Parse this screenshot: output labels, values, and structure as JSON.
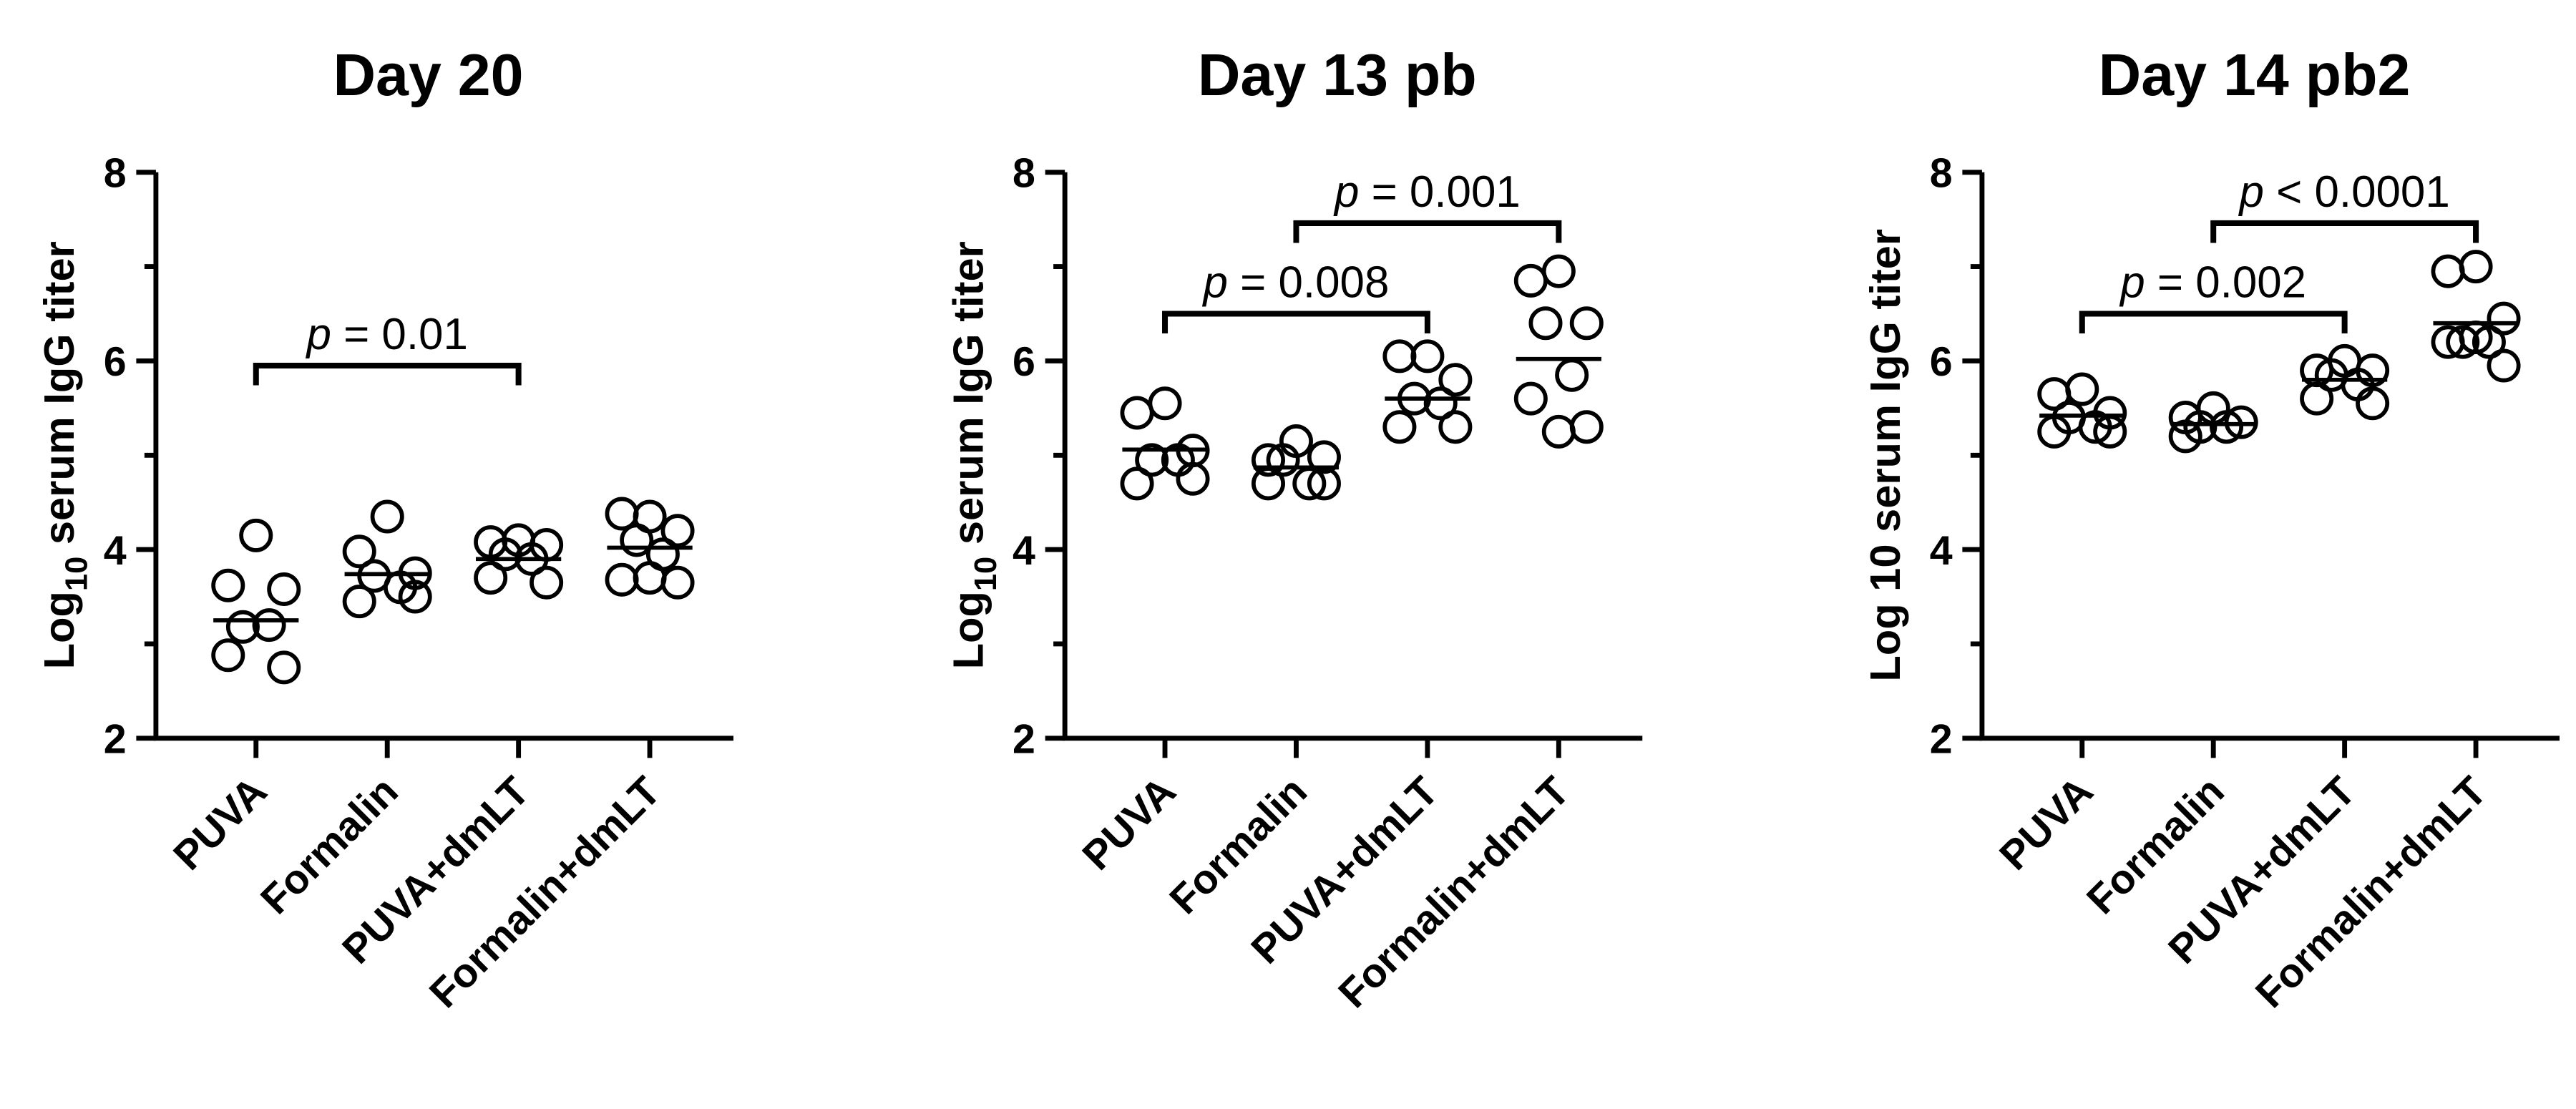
{
  "chart_data": [
    {
      "type": "dotplot",
      "title": "Day 20",
      "ylabel": [
        "Log",
        "10",
        " serum IgG titer"
      ],
      "categories": [
        "PUVA",
        "Formalin",
        "PUVA+dmLT",
        "Formalin+dmLT"
      ],
      "values": [
        [
          4.15,
          3.62,
          3.58,
          3.18,
          3.2,
          2.88,
          2.75
        ],
        [
          4.35,
          3.98,
          3.75,
          3.72,
          3.6,
          3.45,
          3.5
        ],
        [
          4.1,
          4.08,
          4.05,
          3.95,
          3.9,
          3.7,
          3.65
        ],
        [
          4.35,
          4.38,
          4.2,
          4.1,
          3.95,
          3.68,
          3.65,
          3.7
        ]
      ],
      "means": [
        3.25,
        3.74,
        3.9,
        4.02
      ],
      "ylim": [
        2,
        8
      ],
      "yticks": [
        2,
        4,
        6,
        8
      ],
      "minor_yticks": [
        3,
        5,
        7
      ],
      "color": "#000000",
      "annotations": [
        {
          "from": "PUVA",
          "to": "PUVA+dmLT",
          "y": 5.95,
          "symbol": "p",
          "text": " = 0.01"
        }
      ]
    },
    {
      "type": "dotplot",
      "title": "Day 13 pb",
      "ylabel": [
        "Log",
        "10",
        " serum IgG titer"
      ],
      "categories": [
        "PUVA",
        "Formalin",
        "PUVA+dmLT",
        "Formalin+dmLT"
      ],
      "values": [
        [
          5.55,
          5.45,
          5.05,
          4.95,
          4.95,
          4.7,
          4.75
        ],
        [
          5.15,
          4.95,
          4.98,
          4.95,
          4.7,
          4.7,
          4.7
        ],
        [
          6.05,
          6.05,
          5.8,
          5.6,
          5.55,
          5.3,
          5.3
        ],
        [
          6.95,
          6.85,
          6.4,
          6.4,
          5.85,
          5.6,
          5.3,
          5.25
        ]
      ],
      "means": [
        5.06,
        4.87,
        5.6,
        6.02
      ],
      "ylim": [
        2,
        8
      ],
      "yticks": [
        2,
        4,
        6,
        8
      ],
      "minor_yticks": [
        3,
        5,
        7
      ],
      "color": "#000000",
      "annotations": [
        {
          "from": "PUVA",
          "to": "PUVA+dmLT",
          "y": 6.5,
          "symbol": "p",
          "text": " = 0.008"
        },
        {
          "from": "Formalin",
          "to": "Formalin+dmLT",
          "y": 7.46,
          "symbol": "p",
          "text": " = 0.001"
        }
      ]
    },
    {
      "type": "dotplot",
      "title": "Day 14 pb2",
      "ylabel": "Log 10 serum IgG titer",
      "categories": [
        "PUVA",
        "Formalin",
        "PUVA+dmLT",
        "Formalin+dmLT"
      ],
      "values": [
        [
          5.7,
          5.65,
          5.45,
          5.4,
          5.3,
          5.25,
          5.25
        ],
        [
          5.5,
          5.4,
          5.35,
          5.3,
          5.3,
          5.2
        ],
        [
          6.0,
          5.9,
          5.9,
          5.85,
          5.75,
          5.6,
          5.55
        ],
        [
          7.0,
          6.95,
          6.45,
          6.2,
          6.2,
          6.2,
          5.95,
          6.25
        ]
      ],
      "means": [
        5.42,
        5.33,
        5.8,
        6.4
      ],
      "ylim": [
        2,
        8
      ],
      "yticks": [
        2,
        4,
        6,
        8
      ],
      "minor_yticks": [
        3,
        5,
        7
      ],
      "color": "#000000",
      "annotations": [
        {
          "from": "PUVA",
          "to": "PUVA+dmLT",
          "y": 6.5,
          "symbol": "p",
          "text": " = 0.002"
        },
        {
          "from": "Formalin",
          "to": "Formalin+dmLT",
          "y": 7.46,
          "symbol": "p",
          "text": " < 0.0001"
        }
      ]
    }
  ]
}
